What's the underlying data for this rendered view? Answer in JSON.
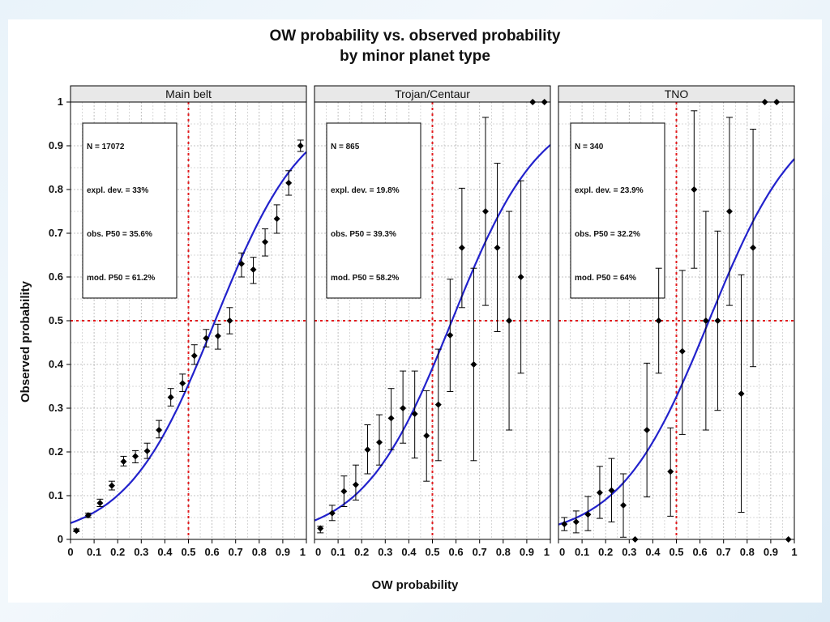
{
  "chart_data": {
    "type": "scatter",
    "title_line1": "OW  probability vs. observed probability",
    "title_line2": "by minor planet type",
    "xlabel": "OW probability",
    "ylabel": "Observed probability",
    "xlim": [
      0,
      1
    ],
    "ylim": [
      0,
      1
    ],
    "x_ticks": [
      "0",
      "0.1",
      "0.2",
      "0.3",
      "0.4",
      "0.5",
      "0.6",
      "0.7",
      "0.8",
      "0.9",
      "1"
    ],
    "y_ticks": [
      "0",
      "0.1",
      "0.2",
      "0.3",
      "0.4",
      "0.5",
      "0.6",
      "0.7",
      "0.8",
      "0.9",
      "1"
    ],
    "grid": true,
    "reference_lines": {
      "x": 0.5,
      "y": 0.5,
      "color": "#e31a1c"
    },
    "colors": {
      "curve": "#2222cc",
      "points": "#000000",
      "strip": "#e8e8e8",
      "grid": "#b0b0b0"
    },
    "panels": [
      {
        "name": "Main belt",
        "stats": [
          "N = 17072",
          "expl. dev. = 33%",
          "obs. P50 = 35.6%",
          "mod. P50 = 61.2%"
        ],
        "curve_logit": {
          "intercept": -3.25,
          "slope": 5.3
        },
        "points": [
          {
            "x": 0.025,
            "y": 0.02,
            "lo": 0.018,
            "hi": 0.024
          },
          {
            "x": 0.075,
            "y": 0.055,
            "lo": 0.05,
            "hi": 0.06
          },
          {
            "x": 0.125,
            "y": 0.083,
            "lo": 0.075,
            "hi": 0.092
          },
          {
            "x": 0.175,
            "y": 0.123,
            "lo": 0.113,
            "hi": 0.133
          },
          {
            "x": 0.225,
            "y": 0.178,
            "lo": 0.168,
            "hi": 0.19
          },
          {
            "x": 0.275,
            "y": 0.19,
            "lo": 0.175,
            "hi": 0.203
          },
          {
            "x": 0.325,
            "y": 0.202,
            "lo": 0.185,
            "hi": 0.22
          },
          {
            "x": 0.375,
            "y": 0.25,
            "lo": 0.232,
            "hi": 0.272
          },
          {
            "x": 0.425,
            "y": 0.325,
            "lo": 0.305,
            "hi": 0.345
          },
          {
            "x": 0.475,
            "y": 0.357,
            "lo": 0.338,
            "hi": 0.378
          },
          {
            "x": 0.525,
            "y": 0.42,
            "lo": 0.4,
            "hi": 0.445
          },
          {
            "x": 0.575,
            "y": 0.46,
            "lo": 0.44,
            "hi": 0.48
          },
          {
            "x": 0.625,
            "y": 0.465,
            "lo": 0.435,
            "hi": 0.492
          },
          {
            "x": 0.675,
            "y": 0.5,
            "lo": 0.47,
            "hi": 0.53
          },
          {
            "x": 0.725,
            "y": 0.63,
            "lo": 0.6,
            "hi": 0.655
          },
          {
            "x": 0.775,
            "y": 0.617,
            "lo": 0.585,
            "hi": 0.645
          },
          {
            "x": 0.825,
            "y": 0.68,
            "lo": 0.648,
            "hi": 0.71
          },
          {
            "x": 0.875,
            "y": 0.733,
            "lo": 0.7,
            "hi": 0.765
          },
          {
            "x": 0.925,
            "y": 0.815,
            "lo": 0.787,
            "hi": 0.843
          },
          {
            "x": 0.975,
            "y": 0.9,
            "lo": 0.887,
            "hi": 0.913
          }
        ]
      },
      {
        "name": "Trojan/Centaur",
        "stats": [
          "N = 865",
          "expl. dev. = 19.8%",
          "obs. P50 = 39.3%",
          "mod. P50 = 58.2%"
        ],
        "curve_logit": {
          "intercept": -3.1,
          "slope": 5.32
        },
        "points": [
          {
            "x": 0.025,
            "y": 0.025,
            "lo": 0.015,
            "hi": 0.03
          },
          {
            "x": 0.075,
            "y": 0.06,
            "lo": 0.043,
            "hi": 0.078
          },
          {
            "x": 0.125,
            "y": 0.11,
            "lo": 0.075,
            "hi": 0.145
          },
          {
            "x": 0.175,
            "y": 0.125,
            "lo": 0.09,
            "hi": 0.17
          },
          {
            "x": 0.225,
            "y": 0.205,
            "lo": 0.15,
            "hi": 0.262
          },
          {
            "x": 0.275,
            "y": 0.222,
            "lo": 0.17,
            "hi": 0.285
          },
          {
            "x": 0.325,
            "y": 0.277,
            "lo": 0.205,
            "hi": 0.345
          },
          {
            "x": 0.375,
            "y": 0.3,
            "lo": 0.22,
            "hi": 0.385
          },
          {
            "x": 0.425,
            "y": 0.287,
            "lo": 0.186,
            "hi": 0.385
          },
          {
            "x": 0.475,
            "y": 0.237,
            "lo": 0.133,
            "hi": 0.34
          },
          {
            "x": 0.525,
            "y": 0.308,
            "lo": 0.18,
            "hi": 0.435
          },
          {
            "x": 0.575,
            "y": 0.467,
            "lo": 0.338,
            "hi": 0.595
          },
          {
            "x": 0.625,
            "y": 0.667,
            "lo": 0.53,
            "hi": 0.803
          },
          {
            "x": 0.675,
            "y": 0.4,
            "lo": 0.18,
            "hi": 0.62
          },
          {
            "x": 0.725,
            "y": 0.75,
            "lo": 0.535,
            "hi": 0.965
          },
          {
            "x": 0.775,
            "y": 0.667,
            "lo": 0.475,
            "hi": 0.86
          },
          {
            "x": 0.825,
            "y": 0.5,
            "lo": 0.25,
            "hi": 0.75
          },
          {
            "x": 0.875,
            "y": 0.6,
            "lo": 0.38,
            "hi": 0.82
          },
          {
            "x": 0.925,
            "y": 1.0,
            "lo": 1.0,
            "hi": 1.0
          },
          {
            "x": 0.975,
            "y": 1.0,
            "lo": 1.0,
            "hi": 1.0
          }
        ]
      },
      {
        "name": "TNO",
        "stats": [
          "N = 340",
          "expl. dev. = 23.9%",
          "obs. P50 = 32.2%",
          "mod. P50 = 64%"
        ],
        "curve_logit": {
          "intercept": -3.35,
          "slope": 5.25
        },
        "points": [
          {
            "x": 0.025,
            "y": 0.035,
            "lo": 0.02,
            "hi": 0.05
          },
          {
            "x": 0.075,
            "y": 0.04,
            "lo": 0.015,
            "hi": 0.065
          },
          {
            "x": 0.125,
            "y": 0.057,
            "lo": 0.02,
            "hi": 0.098
          },
          {
            "x": 0.175,
            "y": 0.107,
            "lo": 0.048,
            "hi": 0.167
          },
          {
            "x": 0.225,
            "y": 0.112,
            "lo": 0.04,
            "hi": 0.185
          },
          {
            "x": 0.275,
            "y": 0.078,
            "lo": 0.005,
            "hi": 0.15
          },
          {
            "x": 0.325,
            "y": 0.0,
            "lo": 0.0,
            "hi": 0.0
          },
          {
            "x": 0.375,
            "y": 0.25,
            "lo": 0.097,
            "hi": 0.403
          },
          {
            "x": 0.425,
            "y": 0.5,
            "lo": 0.38,
            "hi": 0.62
          },
          {
            "x": 0.475,
            "y": 0.155,
            "lo": 0.053,
            "hi": 0.255
          },
          {
            "x": 0.525,
            "y": 0.43,
            "lo": 0.24,
            "hi": 0.615
          },
          {
            "x": 0.575,
            "y": 0.8,
            "lo": 0.62,
            "hi": 0.98
          },
          {
            "x": 0.625,
            "y": 0.5,
            "lo": 0.25,
            "hi": 0.75
          },
          {
            "x": 0.675,
            "y": 0.5,
            "lo": 0.295,
            "hi": 0.705
          },
          {
            "x": 0.725,
            "y": 0.75,
            "lo": 0.535,
            "hi": 0.965
          },
          {
            "x": 0.775,
            "y": 0.333,
            "lo": 0.062,
            "hi": 0.605
          },
          {
            "x": 0.825,
            "y": 0.667,
            "lo": 0.395,
            "hi": 0.938
          },
          {
            "x": 0.875,
            "y": 1.0,
            "lo": 1.0,
            "hi": 1.0
          },
          {
            "x": 0.925,
            "y": 1.0,
            "lo": 1.0,
            "hi": 1.0
          },
          {
            "x": 0.975,
            "y": 0.0,
            "lo": 0.0,
            "hi": 0.0
          }
        ]
      }
    ]
  }
}
